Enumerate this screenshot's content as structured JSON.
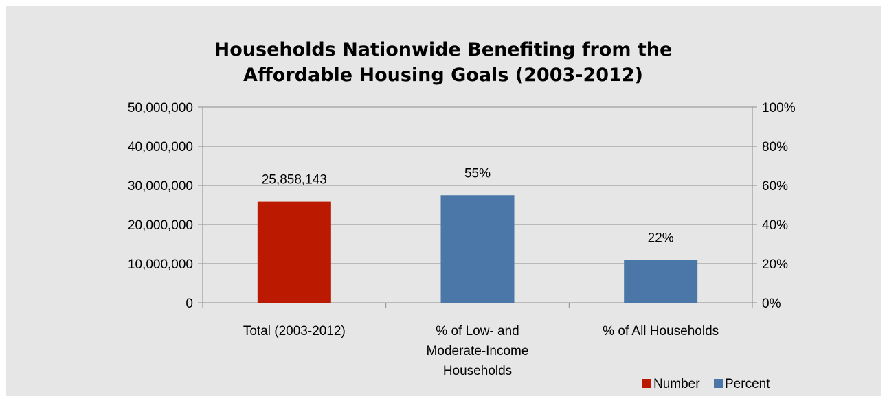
{
  "chart_data": {
    "type": "bar",
    "title_lines": [
      "Households Nationwide Benefiting from the",
      "Affordable Housing Goals (2003-2012)"
    ],
    "categories": [
      [
        "Total (2003-2012)"
      ],
      [
        "% of Low- and",
        "Moderate-Income",
        "Households"
      ],
      [
        "% of All Households"
      ]
    ],
    "left_axis": {
      "min": 0,
      "max": 50000000,
      "ticks": [
        0,
        10000000,
        20000000,
        30000000,
        40000000,
        50000000
      ],
      "tick_labels": [
        "0",
        "10,000,000",
        "20,000,000",
        "30,000,000",
        "40,000,000",
        "50,000,000"
      ]
    },
    "right_axis": {
      "min": 0,
      "max": 100,
      "ticks": [
        0,
        20,
        40,
        60,
        80,
        100
      ],
      "tick_labels": [
        "0%",
        "20%",
        "40%",
        "60%",
        "80%",
        "100%"
      ]
    },
    "bars": [
      {
        "category_index": 0,
        "series": "Number",
        "value": 25858143,
        "axis": "left",
        "label": "25,858,143"
      },
      {
        "category_index": 1,
        "series": "Percent",
        "value": 55,
        "axis": "right",
        "label": "55%"
      },
      {
        "category_index": 2,
        "series": "Percent",
        "value": 22,
        "axis": "right",
        "label": "22%"
      }
    ],
    "series": [
      {
        "name": "Number",
        "color": "#bb1a00"
      },
      {
        "name": "Percent",
        "color": "#4a77a7"
      }
    ],
    "grid": true,
    "legend_position": "bottom-right"
  }
}
